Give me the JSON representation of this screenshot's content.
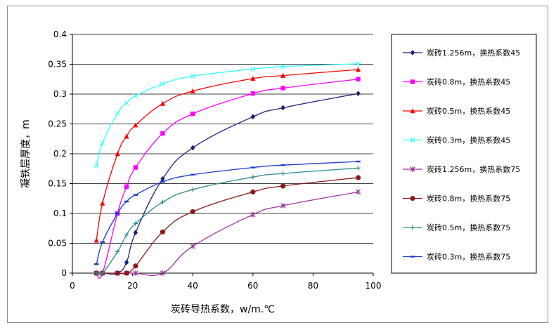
{
  "chart_data": {
    "type": "line",
    "title": "",
    "xlabel": "炭砖导热系数，w/m.℃",
    "ylabel": "凝铁层厚度，m",
    "xlim": [
      0,
      100
    ],
    "ylim": [
      0,
      0.4
    ],
    "xticks": [
      0,
      20,
      40,
      60,
      80,
      100
    ],
    "yticks": [
      0,
      0.05,
      0.1,
      0.15,
      0.2,
      0.25,
      0.3,
      0.35,
      0.4
    ],
    "xtick_labels": [
      "0",
      "20",
      "40",
      "60",
      "80",
      "100"
    ],
    "ytick_labels": [
      "0",
      "0.05",
      "0.1",
      "0.15",
      "0.2",
      "0.25",
      "0.3",
      "0.35",
      "0.4"
    ],
    "grid": "horizontal",
    "legend_position": "right",
    "series": [
      {
        "name": "炭砖1.256m，换热系数45",
        "color": "#1f1f7a",
        "marker": "diamond",
        "x": [
          8,
          10,
          15,
          18,
          21,
          30,
          40,
          60,
          70,
          95
        ],
        "y": [
          0,
          0,
          0,
          0.018,
          0.068,
          0.158,
          0.21,
          0.262,
          0.277,
          0.301
        ]
      },
      {
        "name": "炭砖0.8m，换热系数45",
        "color": "#ff00ff",
        "marker": "square",
        "x": [
          8,
          10,
          15,
          18,
          21,
          30,
          40,
          60,
          70,
          95
        ],
        "y": [
          0,
          0,
          0.1,
          0.145,
          0.177,
          0.234,
          0.267,
          0.301,
          0.31,
          0.325
        ]
      },
      {
        "name": "炭砖0.5m，换热系数45",
        "color": "#ff0000",
        "marker": "triangle",
        "x": [
          8,
          10,
          15,
          18,
          21,
          30,
          40,
          60,
          70,
          95
        ],
        "y": [
          0.055,
          0.117,
          0.2,
          0.229,
          0.248,
          0.284,
          0.305,
          0.326,
          0.331,
          0.341
        ]
      },
      {
        "name": "炭砖0.3m，换热系数45",
        "color": "#33ffff",
        "marker": "x",
        "x": [
          8,
          10,
          15,
          18,
          21,
          30,
          40,
          60,
          70,
          95
        ],
        "y": [
          0.18,
          0.218,
          0.268,
          0.285,
          0.297,
          0.317,
          0.33,
          0.342,
          0.346,
          0.351
        ]
      },
      {
        "name": "炭砖1.256m，换热系数75",
        "color": "#993399",
        "marker": "star",
        "x": [
          8,
          10,
          15,
          18,
          21,
          30,
          40,
          60,
          70,
          95
        ],
        "y": [
          0,
          0,
          0,
          0,
          0,
          0,
          0.045,
          0.098,
          0.113,
          0.136
        ]
      },
      {
        "name": "炭砖0.8m，换热系数75",
        "color": "#8b1a1a",
        "marker": "circle",
        "x": [
          8,
          10,
          15,
          18,
          21,
          30,
          40,
          60,
          70,
          95
        ],
        "y": [
          0,
          0,
          0,
          0,
          0.012,
          0.069,
          0.103,
          0.136,
          0.146,
          0.16
        ]
      },
      {
        "name": "炭砖0.5m，换热系数75",
        "color": "#2e8b8b",
        "marker": "plus",
        "x": [
          8,
          10,
          15,
          18,
          21,
          30,
          40,
          60,
          70,
          95
        ],
        "y": [
          0,
          0,
          0.036,
          0.064,
          0.083,
          0.119,
          0.14,
          0.161,
          0.167,
          0.176
        ]
      },
      {
        "name": "炭砖0.3m，换热系数75",
        "color": "#1a3ccc",
        "marker": "dash",
        "x": [
          8,
          10,
          15,
          18,
          21,
          30,
          40,
          60,
          70,
          95
        ],
        "y": [
          0.015,
          0.052,
          0.1,
          0.12,
          0.131,
          0.153,
          0.165,
          0.177,
          0.181,
          0.187
        ]
      }
    ]
  }
}
